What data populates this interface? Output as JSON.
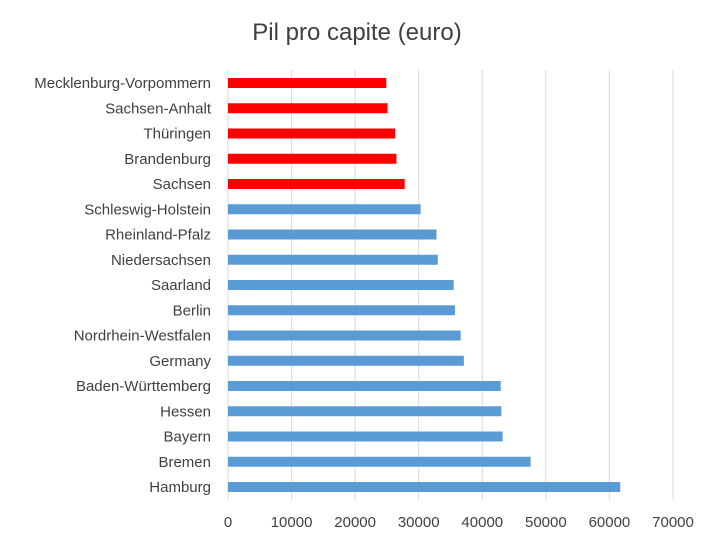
{
  "chart_data": {
    "type": "bar",
    "orientation": "horizontal",
    "title": "Pil pro capite (euro)",
    "xlabel": "",
    "ylabel": "",
    "categories": [
      "Mecklenburg-Vorpommern",
      "Sachsen-Anhalt",
      "Thüringen",
      "Brandenburg",
      "Sachsen",
      "Schleswig-Holstein",
      "Rheinland-Pfalz",
      "Niedersachsen",
      "Saarland",
      "Berlin",
      "Nordrhein-Westfalen",
      "Germany",
      "Baden-Württemberg",
      "Hessen",
      "Bayern",
      "Bremen",
      "Hamburg"
    ],
    "values": [
      24900,
      25100,
      26300,
      26500,
      27800,
      30300,
      32800,
      33000,
      35500,
      35700,
      36600,
      37100,
      42900,
      43000,
      43200,
      47600,
      61700
    ],
    "bar_colors": [
      "#ff0000",
      "#ff0000",
      "#ff0000",
      "#ff0000",
      "#ff0000",
      "#5b9bd5",
      "#5b9bd5",
      "#5b9bd5",
      "#5b9bd5",
      "#5b9bd5",
      "#5b9bd5",
      "#5b9bd5",
      "#5b9bd5",
      "#5b9bd5",
      "#5b9bd5",
      "#5b9bd5",
      "#5b9bd5"
    ],
    "xlim": [
      0,
      70000
    ],
    "xticks": [
      "0",
      "10000",
      "20000",
      "30000",
      "40000",
      "50000",
      "60000",
      "70000"
    ],
    "grid": "vertical",
    "legend": "none"
  }
}
